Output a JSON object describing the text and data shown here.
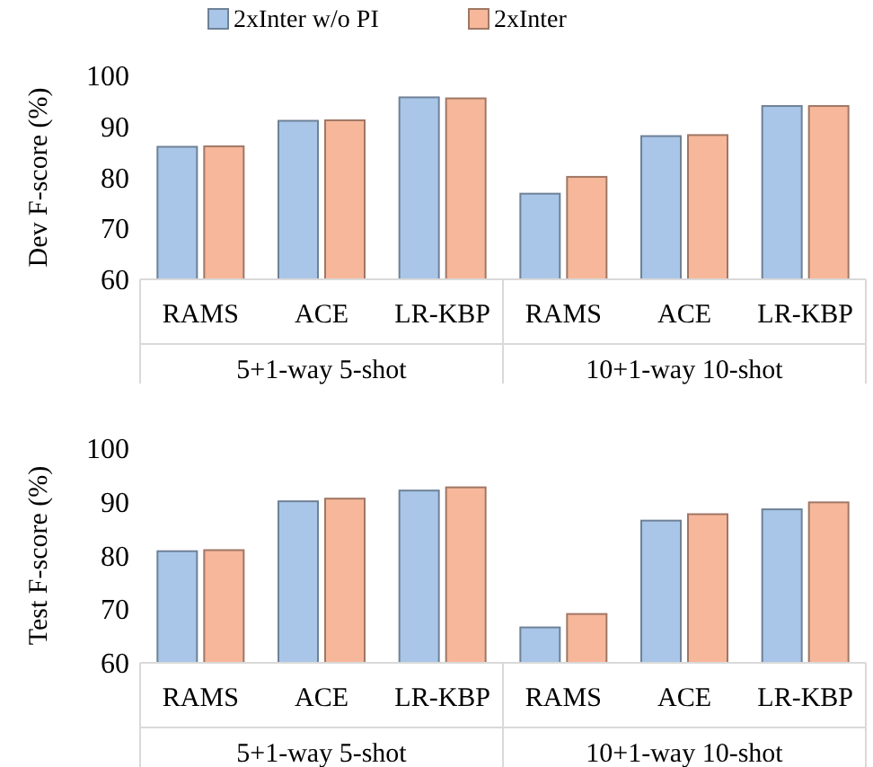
{
  "chart_data": [
    {
      "type": "bar",
      "ylabel": "Dev F-score (%)",
      "categories": [
        "RAMS",
        "ACE",
        "LR-KBP",
        "RAMS",
        "ACE",
        "LR-KBP"
      ],
      "annotations": [
        "5+1-way 5-shot",
        "10+1-way 10-shot"
      ],
      "series": [
        {
          "name": "2xInter w/o PI",
          "color": "#a9c6e8",
          "values": [
            86.0,
            91.1,
            95.7,
            76.8,
            88.1,
            94.0
          ]
        },
        {
          "name": "2xInter",
          "color": "#f6b79b",
          "values": [
            86.1,
            91.2,
            95.5,
            80.1,
            88.3,
            94.0
          ]
        }
      ],
      "ylim": [
        60,
        100
      ],
      "yticks": [
        60,
        70,
        80,
        90,
        100
      ],
      "legend": "top",
      "grid": false
    },
    {
      "type": "bar",
      "ylabel": "Test F-score (%)",
      "categories": [
        "RAMS",
        "ACE",
        "LR-KBP",
        "RAMS",
        "ACE",
        "LR-KBP"
      ],
      "annotations": [
        "5+1-way 5-shot",
        "10+1-way 10-shot"
      ],
      "series": [
        {
          "color": "#a9c6e8",
          "values": [
            80.8,
            90.1,
            92.1,
            66.6,
            86.5,
            88.6
          ]
        },
        {
          "color": "#f6b79b",
          "values": [
            81.0,
            90.6,
            92.7,
            69.1,
            87.7,
            89.9
          ]
        }
      ],
      "ylim": [
        60,
        100
      ],
      "yticks": [
        60,
        70,
        80,
        90,
        100
      ],
      "legend": false,
      "grid": false
    }
  ]
}
